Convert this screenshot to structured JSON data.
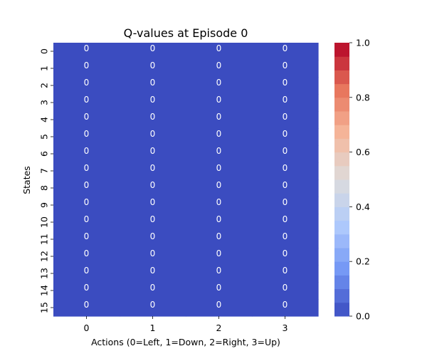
{
  "chart_data": {
    "type": "heatmap",
    "title": "Q-values at Episode 0",
    "xlabel": "Actions (0=Left, 1=Down, 2=Right, 3=Up)",
    "ylabel": "States",
    "x_categories": [
      "0",
      "1",
      "2",
      "3"
    ],
    "y_categories": [
      "0",
      "1",
      "2",
      "3",
      "4",
      "5",
      "6",
      "7",
      "8",
      "9",
      "10",
      "11",
      "12",
      "13",
      "14",
      "15"
    ],
    "values": [
      [
        0,
        0,
        0,
        0
      ],
      [
        0,
        0,
        0,
        0
      ],
      [
        0,
        0,
        0,
        0
      ],
      [
        0,
        0,
        0,
        0
      ],
      [
        0,
        0,
        0,
        0
      ],
      [
        0,
        0,
        0,
        0
      ],
      [
        0,
        0,
        0,
        0
      ],
      [
        0,
        0,
        0,
        0
      ],
      [
        0,
        0,
        0,
        0
      ],
      [
        0,
        0,
        0,
        0
      ],
      [
        0,
        0,
        0,
        0
      ],
      [
        0,
        0,
        0,
        0
      ],
      [
        0,
        0,
        0,
        0
      ],
      [
        0,
        0,
        0,
        0
      ],
      [
        0,
        0,
        0,
        0
      ],
      [
        0,
        0,
        0,
        0
      ]
    ],
    "annotations": true,
    "colormap": "coolwarm",
    "vmin": 0.0,
    "vmax": 1.0,
    "colorbar_ticks": [
      "0.0",
      "0.2",
      "0.4",
      "0.6",
      "0.8",
      "1.0"
    ],
    "colormap_stops": [
      "#3b4cc0",
      "#7396f5",
      "#b0cbfc",
      "#dddcdc",
      "#f6b79b",
      "#e7745b",
      "#b40426"
    ],
    "colorbar_levels": 20,
    "legend": "colorbar-right",
    "grid": false
  }
}
